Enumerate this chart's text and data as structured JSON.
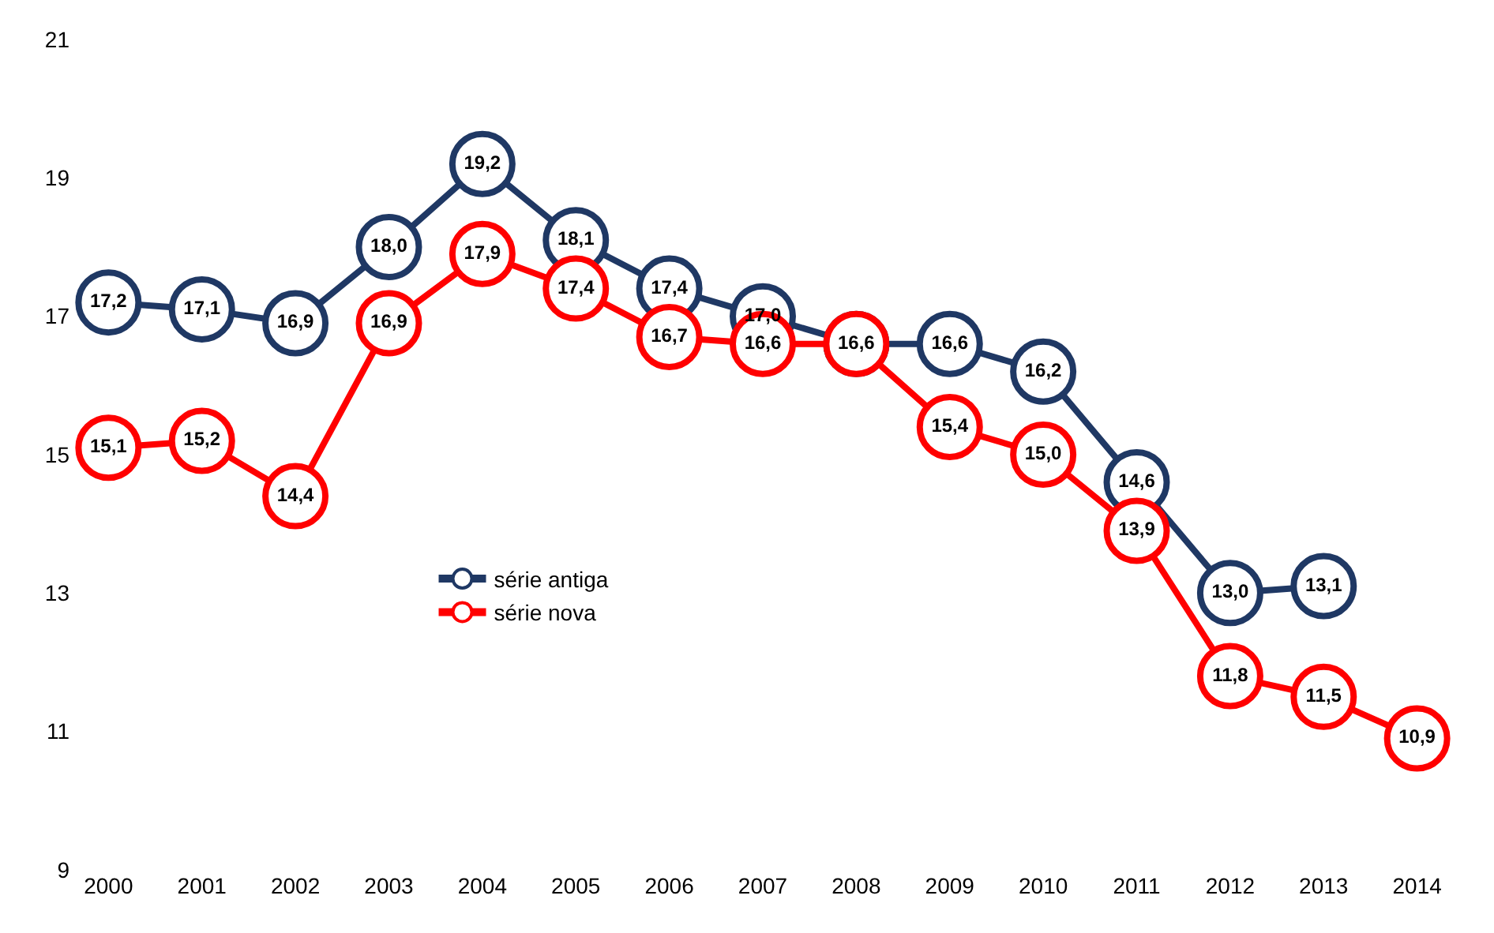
{
  "chart_data": {
    "type": "line",
    "categories": [
      "2000",
      "2001",
      "2002",
      "2003",
      "2004",
      "2005",
      "2006",
      "2007",
      "2008",
      "2009",
      "2010",
      "2011",
      "2012",
      "2013",
      "2014"
    ],
    "series": [
      {
        "name": "série antiga",
        "color": "#1f3864",
        "values": [
          17.2,
          17.1,
          16.9,
          18.0,
          19.2,
          18.1,
          17.4,
          17.0,
          16.6,
          16.6,
          16.2,
          14.6,
          13.0,
          13.1,
          null
        ],
        "value_labels": [
          "17,2",
          "17,1",
          "16,9",
          "18,0",
          "19,2",
          "18,1",
          "17,4",
          "17,0",
          null,
          "16,6",
          "16,2",
          "14,6",
          "13,0",
          "13,1",
          null
        ]
      },
      {
        "name": "série nova",
        "color": "#ff0000",
        "values": [
          15.1,
          15.2,
          14.4,
          16.9,
          17.9,
          17.4,
          16.7,
          16.6,
          16.6,
          15.4,
          15.0,
          13.9,
          11.8,
          11.5,
          10.9
        ],
        "value_labels": [
          "15,1",
          "15,2",
          "14,4",
          "16,9",
          "17,9",
          "17,4",
          "16,7",
          "16,6",
          "16,6",
          "15,4",
          "15,0",
          "13,9",
          "11,8",
          "11,5",
          "10,9"
        ]
      }
    ],
    "ylim": [
      9,
      21
    ],
    "yticks": [
      9,
      11,
      13,
      15,
      17,
      19,
      21
    ],
    "legend": "bottom left",
    "marker": "circle",
    "line_style": "solid"
  }
}
